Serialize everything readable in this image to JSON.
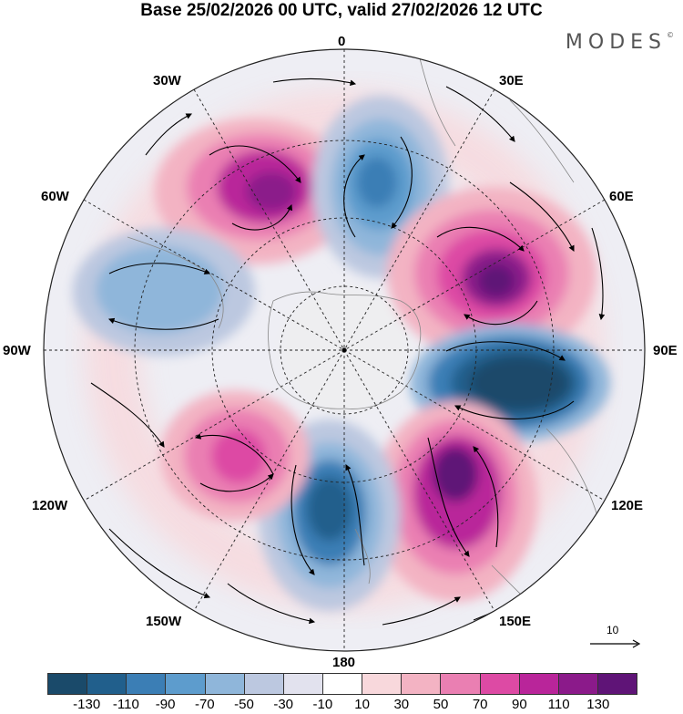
{
  "title": "Base 25/02/2026 00 UTC, valid 27/02/2026 12 UTC",
  "brand": "MODES",
  "brand_mark": "©",
  "lon_labels": [
    "0",
    "30E",
    "60E",
    "90E",
    "120E",
    "150E",
    "180",
    "150W",
    "120W",
    "90W",
    "60W",
    "30W"
  ],
  "legend": {
    "ticks": [
      "-130",
      "-110",
      "-90",
      "-70",
      "-50",
      "-30",
      "-10",
      "10",
      "30",
      "50",
      "70",
      "90",
      "110",
      "130"
    ],
    "colors": [
      "#1a4a6a",
      "#215f8c",
      "#3b7eb5",
      "#5d9ccd",
      "#8fb6da",
      "#bcc8e0",
      "#e2e2ee",
      "#ffffff",
      "#f8d8dc",
      "#f3b3c3",
      "#ea7fb2",
      "#dd4aa4",
      "#b9259a",
      "#8b1a8a",
      "#5f1477"
    ]
  },
  "reference_vector": "10"
}
